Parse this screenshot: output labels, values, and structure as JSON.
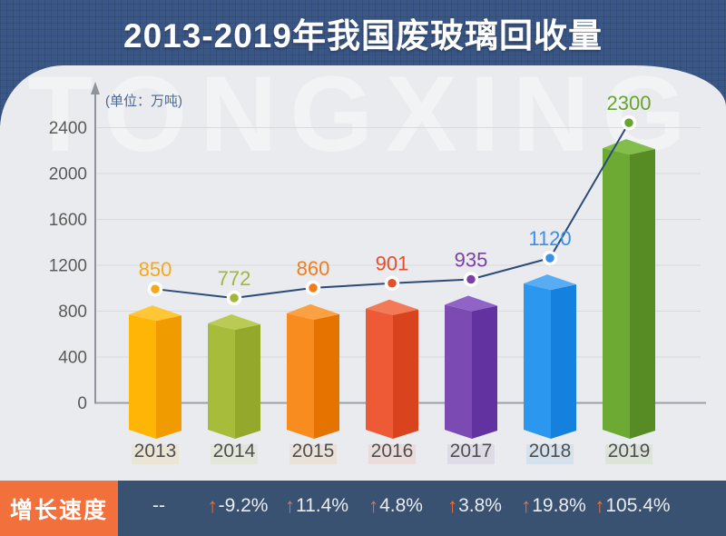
{
  "header": {
    "title": "2013-2019年我国废玻璃回收量"
  },
  "watermark": "TONGXING",
  "chart_data": {
    "type": "bar",
    "title": "2013-2019年我国废玻璃回收量",
    "unit_label": "(单位：万吨)",
    "categories": [
      "2013",
      "2014",
      "2015",
      "2016",
      "2017",
      "2018",
      "2019"
    ],
    "values": [
      850,
      772,
      860,
      901,
      935,
      1120,
      2300
    ],
    "ylim": [
      0,
      2400
    ],
    "yticks": [
      0,
      400,
      800,
      1200,
      1600,
      2000,
      2400
    ],
    "grid": true,
    "line_overlay": true,
    "line_color": "#2C4A78",
    "bar_colors": [
      {
        "front": "#FFB505",
        "side": "#F09C00",
        "top": "#FFC637",
        "label": "#F6A71B"
      },
      {
        "front": "#A8BC3B",
        "side": "#94A82C",
        "top": "#BACB55",
        "label": "#A2B63C"
      },
      {
        "front": "#F98C1E",
        "side": "#E57300",
        "top": "#FBA143",
        "label": "#F07D1A"
      },
      {
        "front": "#EE5A35",
        "side": "#D9441E",
        "top": "#F37A57",
        "label": "#E64D2B"
      },
      {
        "front": "#7B4BB3",
        "side": "#6233A0",
        "top": "#9064C6",
        "label": "#7B3FA6"
      },
      {
        "front": "#2C97EE",
        "side": "#1680DE",
        "top": "#58ACF4",
        "label": "#3A8FE8"
      },
      {
        "front": "#6CAA33",
        "side": "#578C25",
        "top": "#83BD4C",
        "label": "#68A52E"
      }
    ],
    "growth_row": {
      "label": "增长速度",
      "values": [
        "--",
        "-9.2%",
        "11.4%",
        "4.8%",
        "3.8%",
        "19.8%",
        "105.4%"
      ],
      "has_arrow": [
        false,
        true,
        true,
        true,
        true,
        true,
        true
      ],
      "arrow_glyph": "↑",
      "arrow_color": "#F2703B",
      "label_bg": "#F2703B",
      "band_bg": "#3A5271"
    }
  },
  "colors": {
    "header_bg": "#3B5786",
    "panel_bg": "#E9EBEE",
    "axis": "#8F949C",
    "baseline": "#9BA0A8",
    "grid": "#D8DADD",
    "tick_text": "#5A5A5A",
    "year_text": "#4F4F4F"
  }
}
